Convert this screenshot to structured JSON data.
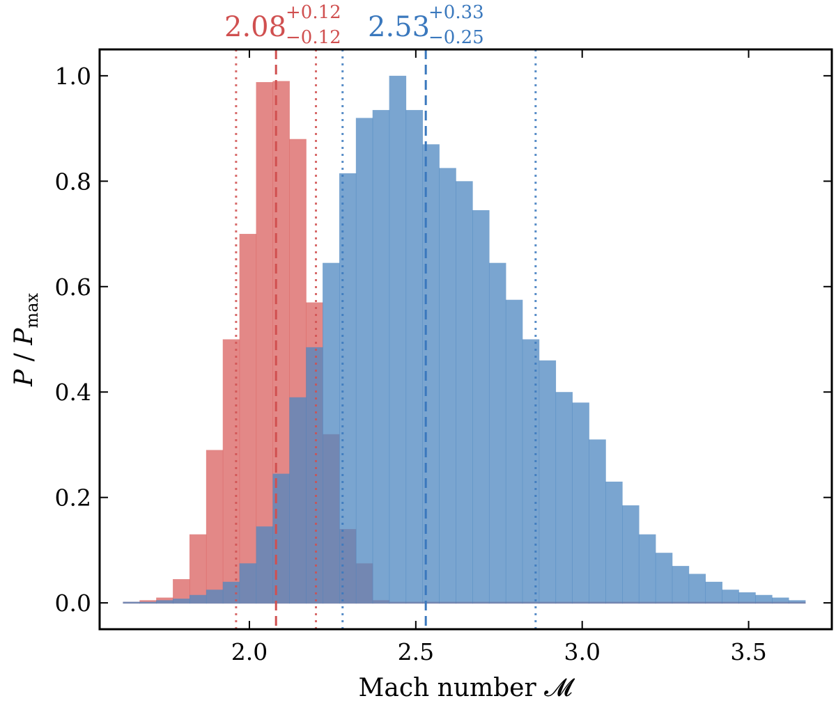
{
  "chart_data": {
    "type": "histogram",
    "xlabel": "Mach number 𝓜",
    "ylabel_main": "P",
    "ylabel_slash": " / ",
    "ylabel_sub": "max",
    "xlim": [
      1.55,
      3.75
    ],
    "ylim": [
      -0.05,
      1.05
    ],
    "xticks": [
      2.0,
      2.5,
      3.0,
      3.5
    ],
    "xtick_labels": [
      "2.0",
      "2.5",
      "3.0",
      "3.5"
    ],
    "yticks": [
      0.0,
      0.2,
      0.4,
      0.6,
      0.8,
      1.0
    ],
    "ytick_labels": [
      "0.0",
      "0.2",
      "0.4",
      "0.6",
      "0.8",
      "1.0"
    ],
    "bins": {
      "start": 1.62,
      "width": 0.05,
      "count": 41
    },
    "series": [
      {
        "name": "red",
        "color": "#d9605f",
        "fill_opacity": 0.75,
        "values": [
          0.0,
          0.005,
          0.01,
          0.045,
          0.13,
          0.29,
          0.5,
          0.7,
          0.988,
          0.99,
          0.88,
          0.57,
          0.32,
          0.14,
          0.075,
          0.005,
          0.0,
          0.0,
          0.0,
          0.0,
          0.0,
          0.0,
          0.0,
          0.0,
          0.0,
          0.0,
          0.0,
          0.0,
          0.0,
          0.0,
          0.0,
          0.0,
          0.0,
          0.0,
          0.0,
          0.0,
          0.0,
          0.0,
          0.0,
          0.0,
          0.0
        ],
        "median": 2.08,
        "lower": 1.96,
        "upper": 2.2,
        "label_value": "2.08",
        "label_plus": "+0.12",
        "label_minus": "−0.12",
        "line_color": "#d05050"
      },
      {
        "name": "blue",
        "color": "#4d87c0",
        "fill_opacity": 0.75,
        "values": [
          0.0,
          0.0,
          0.005,
          0.008,
          0.015,
          0.025,
          0.04,
          0.075,
          0.145,
          0.245,
          0.39,
          0.485,
          0.645,
          0.815,
          0.92,
          0.935,
          1.0,
          0.935,
          0.87,
          0.825,
          0.8,
          0.745,
          0.645,
          0.575,
          0.5,
          0.46,
          0.4,
          0.38,
          0.31,
          0.23,
          0.185,
          0.13,
          0.095,
          0.07,
          0.055,
          0.04,
          0.025,
          0.02,
          0.015,
          0.01,
          0.005
        ],
        "median": 2.53,
        "lower": 2.28,
        "upper": 2.86,
        "label_value": "2.53",
        "label_plus": "+0.33",
        "label_minus": "−0.25",
        "line_color": "#3a78bd"
      }
    ]
  }
}
